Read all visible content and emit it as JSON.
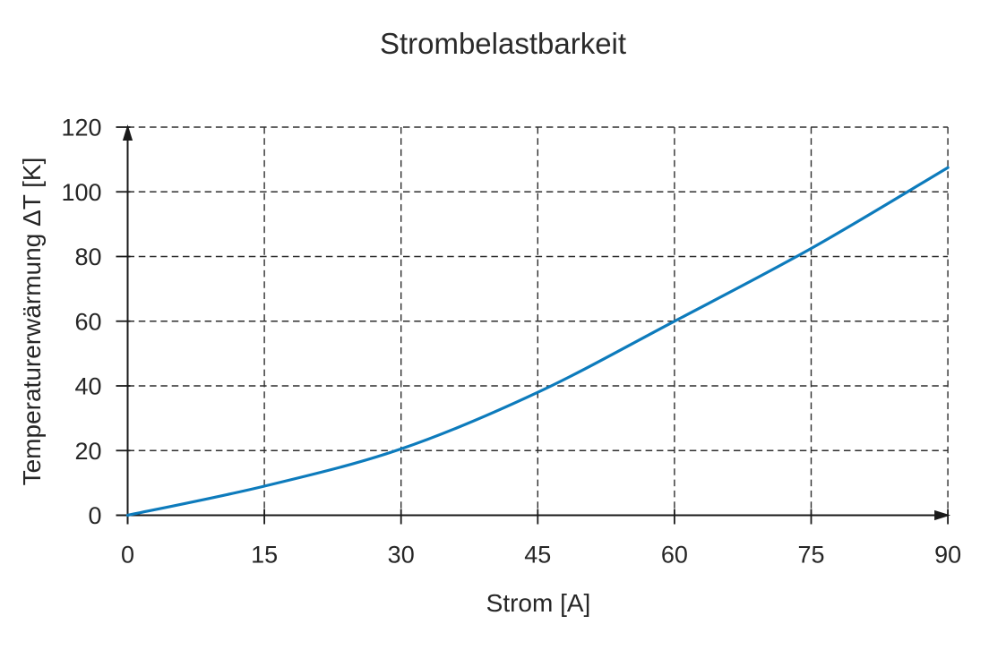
{
  "chart_data": {
    "type": "line",
    "title": "Strombelastbarkeit",
    "xlabel": "Strom [A]",
    "ylabel": "Temperaturerwärmung ΔT [K]",
    "xlim": [
      0,
      90
    ],
    "ylim": [
      0,
      120
    ],
    "x_ticks": [
      0,
      15,
      30,
      45,
      60,
      75,
      90
    ],
    "y_ticks": [
      0,
      20,
      40,
      60,
      80,
      100,
      120
    ],
    "grid": "dashed",
    "legend_position": "none",
    "axis_arrows": true,
    "series": [
      {
        "name": "Temperaturerwärmung",
        "color": "#0d7bbc",
        "x": [
          0,
          15,
          30,
          45,
          60,
          75,
          90
        ],
        "y": [
          0,
          9,
          20.5,
          38,
          60,
          82.5,
          107.5
        ]
      }
    ]
  },
  "colors": {
    "curve": "#0d7bbc",
    "axis": "#1a1a1a",
    "grid": "#2e2e2e",
    "text": "#262626",
    "background": "#ffffff"
  }
}
